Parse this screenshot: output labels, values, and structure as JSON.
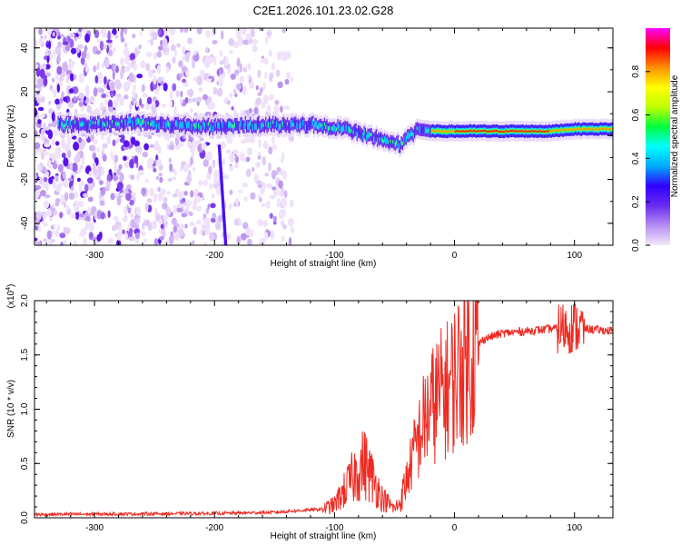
{
  "title": "C2E1.2026.101.23.02.G28",
  "chart_data": [
    {
      "type": "heatmap",
      "panel": "top",
      "xlabel": "Height of straight line (km)",
      "ylabel": "Frequency (Hz)",
      "xlim": [
        -350,
        132
      ],
      "ylim": [
        -50,
        49
      ],
      "xticks": [
        -300,
        -200,
        -100,
        0,
        100
      ],
      "xtick_labels": [
        "-300",
        "-200",
        "-100",
        "0",
        "100"
      ],
      "yticks": [
        40,
        20,
        0,
        -20,
        -40
      ],
      "ytick_labels": [
        "40",
        "20",
        "0",
        "-20",
        "-40"
      ],
      "colorbar": {
        "label": "Normalized spectral amplitude",
        "range": [
          0,
          1
        ],
        "ticks": [
          0.0,
          0.2,
          0.4,
          0.6,
          0.8
        ],
        "tick_labels": [
          "0.0",
          "0.2",
          "0.4",
          "0.6",
          "0.8"
        ],
        "colors": [
          "#f4e8fb",
          "#b58ef2",
          "#6a2cf0",
          "#3000ff",
          "#00aaff",
          "#00ffff",
          "#00ff40",
          "#c0ff00",
          "#ffff00",
          "#ff9000",
          "#ff0000",
          "#ff00ff"
        ]
      },
      "ridge": {
        "x": [
          -330,
          -300,
          -270,
          -240,
          -200,
          -160,
          -120,
          -90,
          -60,
          -45,
          -30,
          -20,
          0,
          30,
          60,
          80,
          100,
          132
        ],
        "freq": [
          5,
          5,
          6,
          5,
          4,
          5,
          5,
          3,
          -2,
          -4,
          3,
          2,
          2,
          2,
          2,
          2,
          3,
          3
        ]
      },
      "noise_extent_x": [
        -350,
        -135
      ]
    },
    {
      "type": "line",
      "panel": "bottom",
      "xlabel": "Height of straight line (km)",
      "ylabel": "SNR (10 * v/v)",
      "y_multiplier": "(x10",
      "y_multiplier_exp": "4",
      "xlim": [
        -350,
        132
      ],
      "ylim": [
        0,
        2.0
      ],
      "xticks": [
        -300,
        -200,
        -100,
        0,
        100
      ],
      "xtick_labels": [
        "-300",
        "-200",
        "-100",
        "0",
        "100"
      ],
      "yticks": [
        0.0,
        0.5,
        1.0,
        1.5,
        2.0
      ],
      "ytick_labels": [
        "0.0",
        "0.5",
        "1.0",
        "1.5",
        "2.0"
      ],
      "color": "#ee2a22",
      "series": [
        {
          "name": "SNR",
          "x": [
            -350,
            -200,
            -150,
            -110,
            -100,
            -90,
            -80,
            -75,
            -70,
            -60,
            -50,
            -45,
            -35,
            -25,
            -15,
            -5,
            5,
            15,
            25,
            40,
            60,
            80,
            90,
            100,
            110,
            120,
            132
          ],
          "y": [
            0.03,
            0.04,
            0.05,
            0.08,
            0.12,
            0.28,
            0.45,
            0.5,
            0.4,
            0.18,
            0.08,
            0.15,
            0.55,
            0.9,
            1.1,
            1.2,
            1.4,
            1.55,
            1.65,
            1.7,
            1.72,
            1.74,
            1.75,
            1.76,
            1.74,
            1.73,
            1.72
          ]
        }
      ]
    }
  ]
}
